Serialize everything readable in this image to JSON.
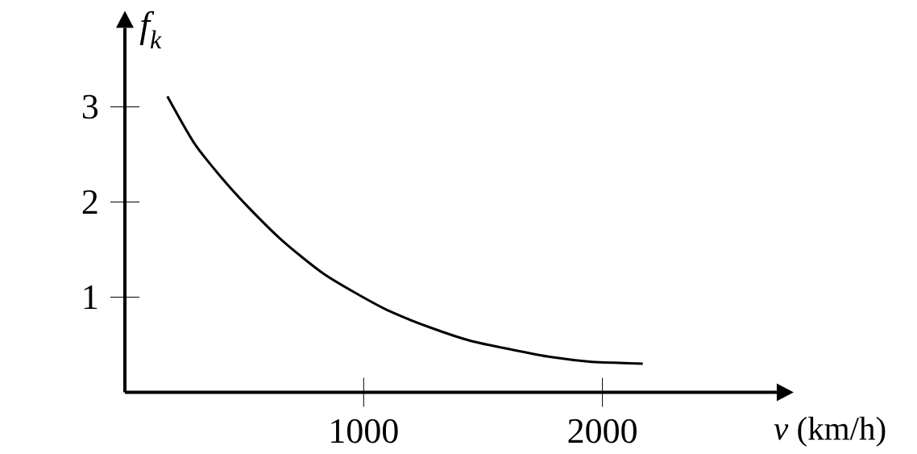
{
  "chart_data": {
    "type": "line",
    "xlabel": "*v* (km/h)",
    "ylabel": "f$_{k}$",
    "x": [
      178,
      290,
      403,
      515,
      661,
      830,
      976,
      1111,
      1280,
      1449,
      1618,
      1786,
      1955,
      2068,
      2169
    ],
    "values": [
      3.11,
      2.62,
      2.26,
      1.95,
      1.59,
      1.25,
      1.03,
      0.85,
      0.68,
      0.54,
      0.45,
      0.37,
      0.32,
      0.31,
      0.3
    ],
    "color": "#000000",
    "marker": "none",
    "xlim": [
      0,
      2730
    ],
    "ylim": [
      0,
      3.83
    ],
    "xticks": [
      1000,
      2000
    ],
    "yticks": [
      1,
      2,
      3
    ]
  }
}
